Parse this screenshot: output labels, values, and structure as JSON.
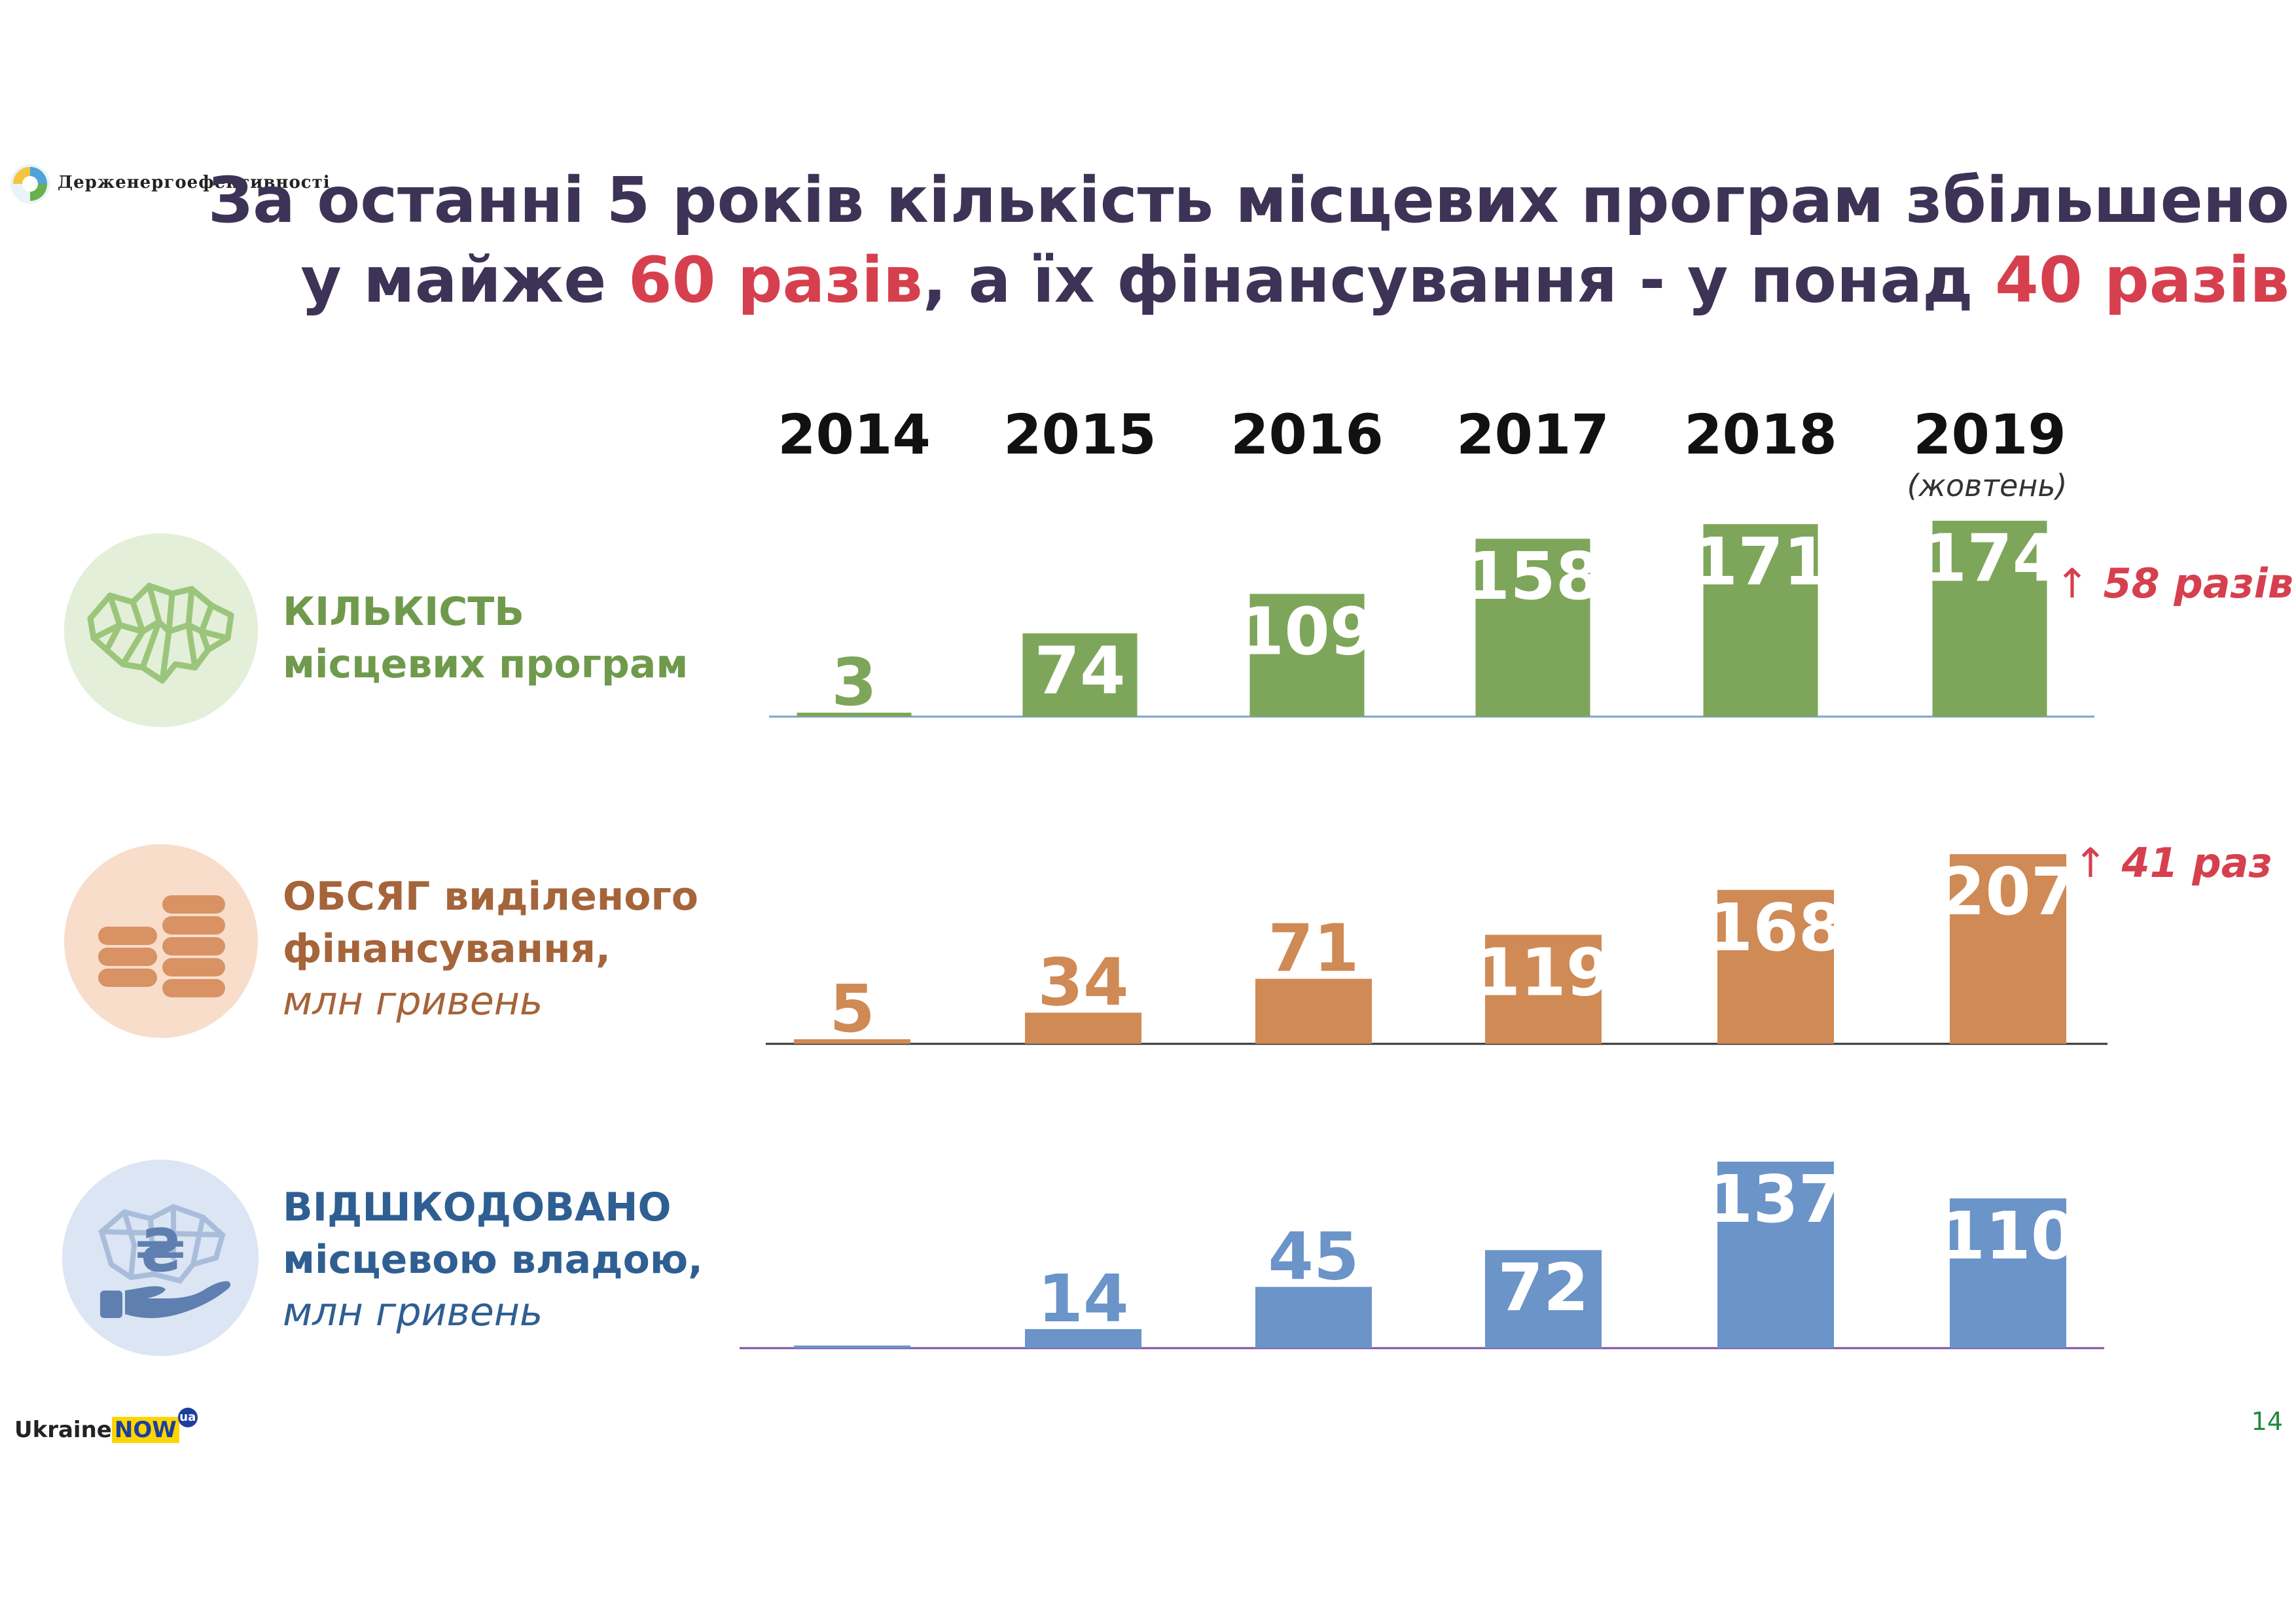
{
  "logo": {
    "text": "Держенергоефективності"
  },
  "title": {
    "line1": "За останні 5 років кількість місцевих програм збільшено",
    "line2_pre": "у майже",
    "line2_accent1": "60 разів",
    "line2_mid": ", а їх фінансування - у понад",
    "line2_accent2": "40 разів"
  },
  "year_note": "(жовтень)",
  "footer": {
    "brand_ukraine": "Ukraine",
    "brand_now": "NOW",
    "brand_ua": "ua",
    "page_number": "14"
  },
  "colors": {
    "programs": "#7ea65a",
    "funding": "#cf8a55",
    "reimbursed": "#6b94c8",
    "accent": "#d6404e",
    "title": "#3d3356"
  },
  "chart_data": {
    "type": "bar",
    "categories": [
      "2014",
      "2015",
      "2016",
      "2017",
      "2018",
      "2019"
    ],
    "rows": [
      {
        "id": "programs",
        "label_line1": "КІЛЬКІСТЬ",
        "label_line2": "місцевих програм",
        "label_unit": "",
        "icon": "ukraine-map-icon",
        "values": [
          3,
          74,
          109,
          158,
          171,
          174
        ],
        "badge": "58 разів",
        "color": "#7ea65a"
      },
      {
        "id": "funding",
        "label_line1": "ОБСЯГ виділеного",
        "label_line2": "фінансування,",
        "label_unit": "млн гривень",
        "icon": "coins-icon",
        "values": [
          5,
          34,
          71,
          119,
          168,
          207
        ],
        "badge": "41 раз",
        "color": "#cf8a55"
      },
      {
        "id": "reimbursed",
        "label_line1": "ВІДШКОДОВАНО",
        "label_line2": "місцевою владою,",
        "label_unit": "млн гривень",
        "icon": "hryvnia-hand-icon",
        "values": [
          null,
          14,
          45,
          72,
          137,
          110
        ],
        "badge": "",
        "color": "#6b94c8"
      }
    ]
  }
}
